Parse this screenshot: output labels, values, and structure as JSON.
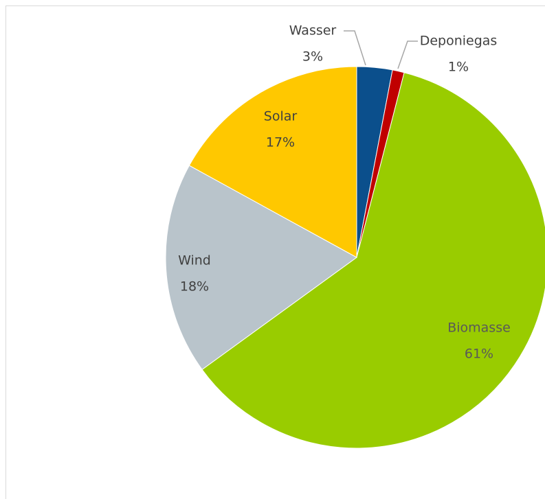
{
  "chart_data": {
    "type": "pie",
    "categories": [
      "Wasser",
      "Deponiegas",
      "Biomasse",
      "Wind",
      "Solar"
    ],
    "values": [
      3,
      1,
      61,
      18,
      17
    ],
    "value_labels": [
      "3%",
      "1%",
      "61%",
      "18%",
      "17%"
    ],
    "colors": [
      "#0b4f8c",
      "#c00000",
      "#99cc00",
      "#b9c4cb",
      "#ffc800"
    ]
  }
}
